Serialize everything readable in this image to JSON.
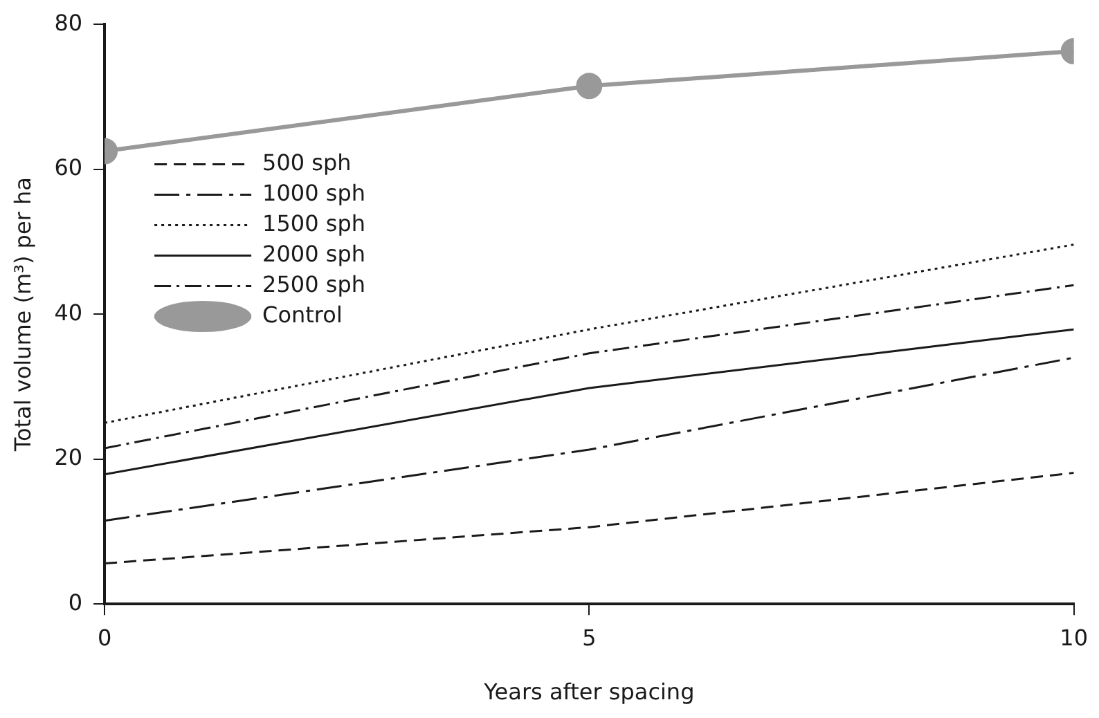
{
  "chart_data": {
    "type": "line",
    "xlabel": "Years after spacing",
    "ylabel": "Total volume (m³) per ha",
    "x": [
      0,
      5,
      10
    ],
    "xlim": [
      0,
      10
    ],
    "xticks": [
      0,
      5,
      10
    ],
    "ylim": [
      0,
      80
    ],
    "yticks": [
      0,
      20,
      40,
      60,
      80
    ],
    "grid": false,
    "legend": "top left",
    "series": [
      {
        "name": "500 sph",
        "color": "#1a1a1a",
        "line_style": "dashed",
        "marker": "none",
        "values": [
          5.6,
          10.6,
          18.1
        ]
      },
      {
        "name": "1000 sph",
        "color": "#1a1a1a",
        "line_style": "longdashdot",
        "marker": "none",
        "values": [
          11.5,
          21.3,
          34
        ]
      },
      {
        "name": "1500 sph",
        "color": "#1a1a1a",
        "line_style": "dotted",
        "marker": "none",
        "values": [
          25,
          37.9,
          49.6
        ]
      },
      {
        "name": "2000 sph",
        "color": "#1a1a1a",
        "line_style": "solid",
        "marker": "none",
        "values": [
          17.9,
          29.8,
          37.9
        ]
      },
      {
        "name": "2500 sph",
        "color": "#1a1a1a",
        "line_style": "dashdot",
        "marker": "none",
        "values": [
          21.5,
          34.6,
          44
        ]
      },
      {
        "name": "Control",
        "color": "#999999",
        "line_style": "solid",
        "marker": "circle",
        "values": [
          62.5,
          71.5,
          76.3
        ]
      }
    ]
  }
}
